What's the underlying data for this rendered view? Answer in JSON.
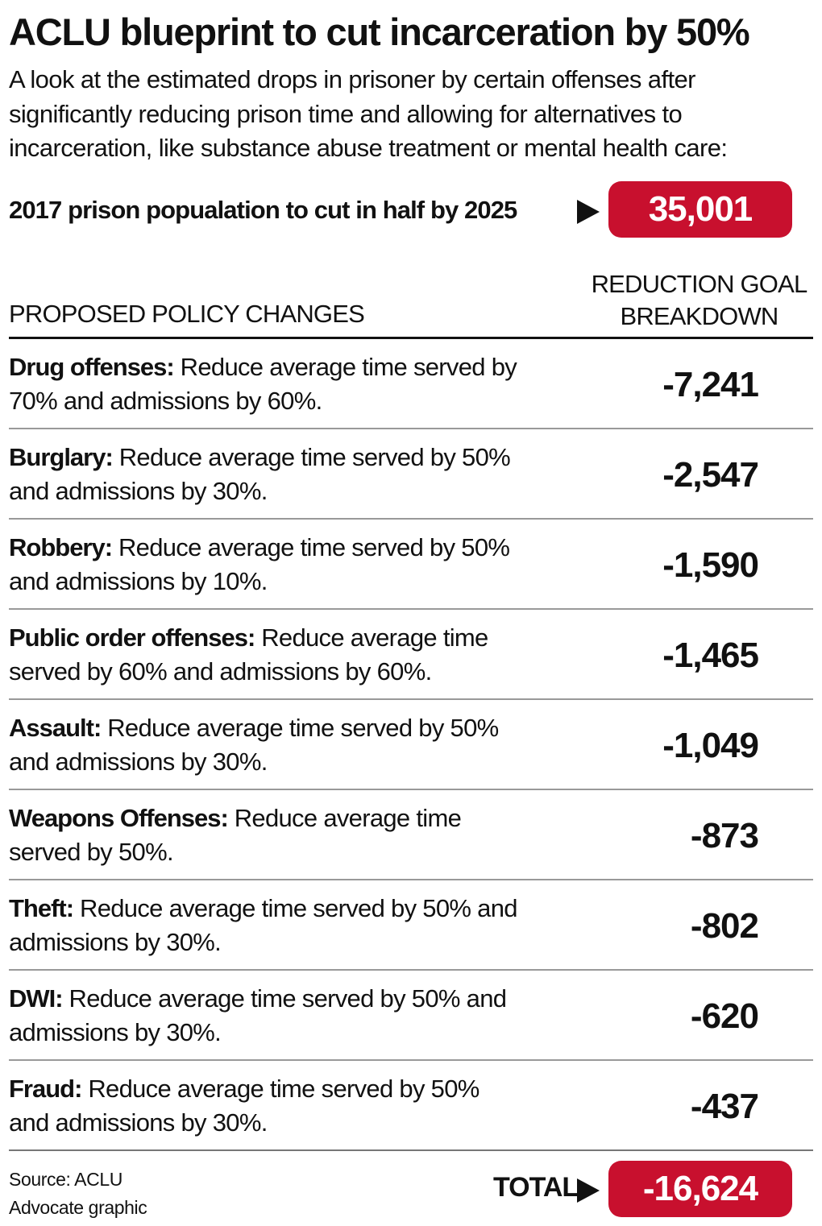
{
  "title": "ACLU blueprint to cut incarceration by 50%",
  "subtitle": "A look at the estimated drops in prisoner by certain offenses after significantly reducing prison time and allowing for alternatives to incarceration, like substance abuse treatment or mental health care:",
  "banner": {
    "label": "2017 prison popualation to cut in half by 2025",
    "value": "35,001"
  },
  "colors": {
    "accent": "#c8102e",
    "text": "#111111"
  },
  "chart_data": {
    "type": "table",
    "columns": [
      "PROPOSED POLICY CHANGES",
      "REDUCTION GOAL BREAKDOWN"
    ],
    "rows": [
      {
        "offense": "Drug offenses:",
        "policy": "Reduce average time served by 70% and admissions by 60%.",
        "value": "-7,241"
      },
      {
        "offense": "Burglary:",
        "policy": "Reduce average time served by 50% and admissions by 30%.",
        "value": "-2,547"
      },
      {
        "offense": "Robbery:",
        "policy": "Reduce average time served by 50% and admissions by 10%.",
        "value": "-1,590"
      },
      {
        "offense": "Public order offenses:",
        "policy": "Reduce average time served by 60% and admissions by 60%.",
        "value": "-1,465"
      },
      {
        "offense": "Assault:",
        "policy": "Reduce average time served by 50% and admissions by 30%.",
        "value": "-1,049"
      },
      {
        "offense": "Weapons Offenses:",
        "policy": "Reduce average time served by 50%.",
        "value": "-873"
      },
      {
        "offense": "Theft:",
        "policy": "Reduce average time served by 50% and admissions by 30%.",
        "value": "-802"
      },
      {
        "offense": "DWI:",
        "policy": "Reduce average time served by 50% and admissions by 30%.",
        "value": "-620"
      },
      {
        "offense": "Fraud:",
        "policy": "Reduce average time served by 50% and admissions by 30%.",
        "value": "-437"
      }
    ],
    "total_label": "TOTAL",
    "total": "-16,624"
  },
  "header": {
    "left": "PROPOSED POLICY CHANGES",
    "right": "REDUCTION GOAL BREAKDOWN"
  },
  "footer": {
    "source": "Source: ACLU",
    "credit": "Advocate graphic"
  }
}
